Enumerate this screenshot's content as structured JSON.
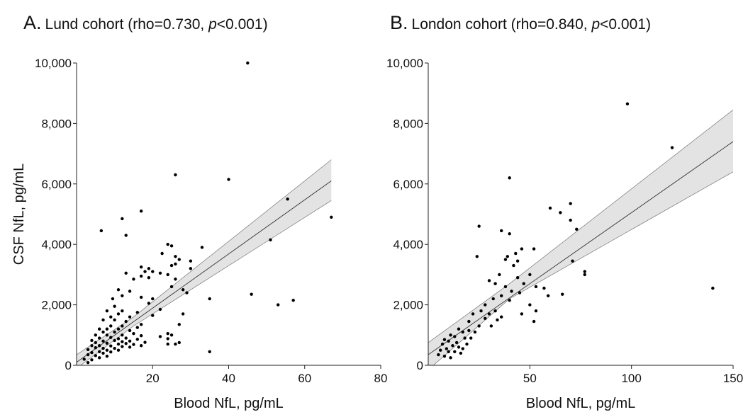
{
  "chart_data": [
    {
      "type": "scatter",
      "panel_letter": "A",
      "title_main": "Lund cohort (rho=0.730, ",
      "title_p": "p",
      "title_tail": "<0.001)",
      "xlabel": "Blood NfL, pg/mL",
      "ylabel": "CSF NfL, pg/mL",
      "xlim": [
        0,
        80
      ],
      "ylim": [
        0,
        10000
      ],
      "xticks": [
        20,
        40,
        60,
        80
      ],
      "xtick_labels": [
        "20",
        "40",
        "60",
        "80"
      ],
      "yticks": [
        0,
        2000,
        4000,
        6000,
        8000,
        10000
      ],
      "ytick_labels": [
        "0",
        "2,000",
        "4,000",
        "6,000",
        "8,000",
        "10,000"
      ],
      "grid": false,
      "fit_line": [
        [
          0,
          100
        ],
        [
          67,
          6100
        ]
      ],
      "ci_lower": [
        [
          0,
          -100
        ],
        [
          15,
          1300
        ],
        [
          67,
          5450
        ]
      ],
      "ci_upper": [
        [
          0,
          350
        ],
        [
          15,
          1600
        ],
        [
          67,
          6800
        ]
      ],
      "points": [
        [
          45,
          10000
        ],
        [
          26,
          6300
        ],
        [
          40,
          6150
        ],
        [
          55.5,
          5500
        ],
        [
          67,
          4900
        ],
        [
          17,
          5100
        ],
        [
          12,
          4850
        ],
        [
          6.5,
          4450
        ],
        [
          13,
          4300
        ],
        [
          51,
          4150
        ],
        [
          24,
          4000
        ],
        [
          25,
          3950
        ],
        [
          33,
          3900
        ],
        [
          22.5,
          3700
        ],
        [
          26,
          3600
        ],
        [
          27,
          3500
        ],
        [
          30,
          3450
        ],
        [
          17,
          3250
        ],
        [
          26,
          3350
        ],
        [
          25,
          3300
        ],
        [
          19,
          3200
        ],
        [
          20,
          3100
        ],
        [
          30,
          3200
        ],
        [
          22,
          3050
        ],
        [
          18,
          3100
        ],
        [
          13,
          3050
        ],
        [
          17,
          2950
        ],
        [
          19,
          2900
        ],
        [
          24,
          3000
        ],
        [
          26,
          2850
        ],
        [
          15,
          2850
        ],
        [
          28,
          2500
        ],
        [
          29,
          2400
        ],
        [
          25,
          2600
        ],
        [
          11,
          2500
        ],
        [
          14,
          2450
        ],
        [
          20,
          2200
        ],
        [
          12,
          2300
        ],
        [
          19,
          2050
        ],
        [
          17,
          2250
        ],
        [
          9.5,
          2200
        ],
        [
          46,
          2350
        ],
        [
          35,
          2200
        ],
        [
          57,
          2150
        ],
        [
          53,
          2000
        ],
        [
          10,
          1950
        ],
        [
          8,
          1800
        ],
        [
          12,
          1800
        ],
        [
          22,
          1850
        ],
        [
          16,
          1750
        ],
        [
          11,
          1700
        ],
        [
          9,
          1600
        ],
        [
          14,
          1600
        ],
        [
          20,
          1650
        ],
        [
          28,
          1700
        ],
        [
          7,
          1500
        ],
        [
          10,
          1500
        ],
        [
          13,
          1450
        ],
        [
          17,
          1350
        ],
        [
          27,
          1350
        ],
        [
          9,
          1300
        ],
        [
          12,
          1300
        ],
        [
          16,
          1250
        ],
        [
          6,
          1200
        ],
        [
          8,
          1200
        ],
        [
          11,
          1200
        ],
        [
          14,
          1150
        ],
        [
          7,
          1100
        ],
        [
          10,
          1100
        ],
        [
          15,
          1050
        ],
        [
          24,
          1050
        ],
        [
          5,
          1000
        ],
        [
          8,
          1000
        ],
        [
          12,
          1000
        ],
        [
          17,
          980
        ],
        [
          22,
          950
        ],
        [
          6,
          900
        ],
        [
          9,
          920
        ],
        [
          11,
          880
        ],
        [
          13,
          900
        ],
        [
          16,
          860
        ],
        [
          24,
          880
        ],
        [
          4,
          820
        ],
        [
          7,
          800
        ],
        [
          10,
          820
        ],
        [
          12,
          780
        ],
        [
          14,
          800
        ],
        [
          18,
          760
        ],
        [
          5,
          750
        ],
        [
          8,
          730
        ],
        [
          11,
          700
        ],
        [
          13,
          720
        ],
        [
          15,
          690
        ],
        [
          17,
          650
        ],
        [
          26,
          700
        ],
        [
          24,
          700
        ],
        [
          4,
          650
        ],
        [
          6,
          650
        ],
        [
          9,
          640
        ],
        [
          12,
          620
        ],
        [
          14,
          600
        ],
        [
          5,
          580
        ],
        [
          7,
          560
        ],
        [
          10,
          560
        ],
        [
          3,
          520
        ],
        [
          8,
          500
        ],
        [
          11,
          500
        ],
        [
          6,
          450
        ],
        [
          9,
          440
        ],
        [
          4,
          420
        ],
        [
          7,
          400
        ],
        [
          3,
          350
        ],
        [
          5,
          320
        ],
        [
          8,
          300
        ],
        [
          6,
          250
        ],
        [
          4,
          180
        ],
        [
          2,
          200
        ],
        [
          3,
          90
        ],
        [
          35,
          450
        ],
        [
          27,
          750
        ],
        [
          25,
          1000
        ]
      ]
    },
    {
      "type": "scatter",
      "panel_letter": "B",
      "title_main": "London cohort (rho=0.840, ",
      "title_p": "p",
      "title_tail": "<0.001)",
      "xlabel": "Blood NfL, pg/mL",
      "ylabel": "",
      "xlim": [
        0,
        150
      ],
      "ylim": [
        0,
        10000
      ],
      "xticks": [
        50,
        100,
        150
      ],
      "xtick_labels": [
        "50",
        "100",
        "150"
      ],
      "yticks": [
        0,
        2000,
        4000,
        6000,
        8000,
        10000
      ],
      "ytick_labels": [
        "0",
        "2,000",
        "4,000",
        "6,000",
        "8,000",
        "10,000"
      ],
      "grid": false,
      "fit_line": [
        [
          0,
          350
        ],
        [
          150,
          7400
        ]
      ],
      "ci_lower": [
        [
          0,
          -150
        ],
        [
          40,
          2200
        ],
        [
          150,
          6400
        ]
      ],
      "ci_upper": [
        [
          0,
          750
        ],
        [
          40,
          2700
        ],
        [
          150,
          8450
        ]
      ],
      "points": [
        [
          98,
          8650
        ],
        [
          120,
          7200
        ],
        [
          40,
          6200
        ],
        [
          60,
          5200
        ],
        [
          65,
          5050
        ],
        [
          70,
          5350
        ],
        [
          73,
          4500
        ],
        [
          25,
          4600
        ],
        [
          36,
          4450
        ],
        [
          40,
          4350
        ],
        [
          70,
          4800
        ],
        [
          46,
          3850
        ],
        [
          52,
          3850
        ],
        [
          43,
          3700
        ],
        [
          39,
          3600
        ],
        [
          38,
          3500
        ],
        [
          44,
          3450
        ],
        [
          42,
          3300
        ],
        [
          71,
          3450
        ],
        [
          77,
          3100
        ],
        [
          77,
          3000
        ],
        [
          24,
          3600
        ],
        [
          50,
          3000
        ],
        [
          35,
          3000
        ],
        [
          44,
          2900
        ],
        [
          33,
          2700
        ],
        [
          47,
          2700
        ],
        [
          30,
          2800
        ],
        [
          38,
          2600
        ],
        [
          53,
          2600
        ],
        [
          57,
          2550
        ],
        [
          59,
          2300
        ],
        [
          66,
          2350
        ],
        [
          140,
          2550
        ],
        [
          41,
          2450
        ],
        [
          45,
          2400
        ],
        [
          36,
          2300
        ],
        [
          32,
          2200
        ],
        [
          40,
          2150
        ],
        [
          50,
          2000
        ],
        [
          28,
          2000
        ],
        [
          33,
          1800
        ],
        [
          46,
          1700
        ],
        [
          53,
          1800
        ],
        [
          26,
          1800
        ],
        [
          30,
          1700
        ],
        [
          36,
          1600
        ],
        [
          22,
          1700
        ],
        [
          28,
          1550
        ],
        [
          34,
          1500
        ],
        [
          52,
          1450
        ],
        [
          20,
          1450
        ],
        [
          25,
          1300
        ],
        [
          31,
          1300
        ],
        [
          15,
          1200
        ],
        [
          20,
          1150
        ],
        [
          23,
          1100
        ],
        [
          17,
          1100
        ],
        [
          11,
          1000
        ],
        [
          13,
          950
        ],
        [
          18,
          900
        ],
        [
          21,
          900
        ],
        [
          8,
          850
        ],
        [
          10,
          800
        ],
        [
          14,
          750
        ],
        [
          19,
          700
        ],
        [
          7,
          700
        ],
        [
          12,
          650
        ],
        [
          15,
          600
        ],
        [
          17,
          550
        ],
        [
          9,
          550
        ],
        [
          6,
          500
        ],
        [
          10,
          450
        ],
        [
          13,
          450
        ],
        [
          16,
          400
        ],
        [
          5,
          350
        ],
        [
          8,
          300
        ],
        [
          11,
          250
        ]
      ]
    }
  ]
}
